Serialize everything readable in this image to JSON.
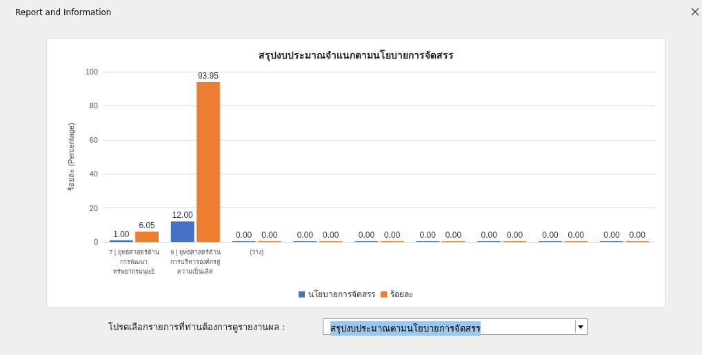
{
  "chart_data": {
    "type": "bar",
    "title": "สรุปงบประมาณจำแนกตามนโยบายการจัดสรร",
    "ylabel": "ร้อยละ (Percentage)",
    "categories": [
      "7 | ยุทธศาสตร์ด้าน\nการพัฒนา\nทรัพยากรมนุษย์",
      "9 | ยุทธศาสตร์ด้าน\nการบริหารองค์กรสู่\nความเป็นเลิศ",
      "(ว่าง)",
      null,
      null,
      null,
      null,
      null,
      null
    ],
    "series": [
      {
        "name": "นโยบายการจัดสรร",
        "color": "#4472c4",
        "values": [
          1,
          12,
          0,
          0,
          0,
          0,
          0,
          0,
          0
        ],
        "value_labels": [
          "1.00",
          "12.00",
          "0.00",
          "0.00",
          "0.00",
          "0.00",
          "0.00",
          "0.00",
          "0.00"
        ]
      },
      {
        "name": "ร้อยละ",
        "color": "#ed7d31",
        "values": [
          6.05,
          93.95,
          0,
          0,
          0,
          0,
          0,
          0,
          0
        ],
        "value_labels": [
          "6.05",
          "93.95",
          "0.00",
          "0.00",
          "0.00",
          "0.00",
          "0.00",
          "0.00",
          "0.00"
        ]
      }
    ],
    "ylim": [
      0,
      100
    ],
    "yticks": [
      0,
      20,
      40,
      60,
      80,
      100
    ],
    "grid": "y",
    "legend": "bottom",
    "annotations": [
      "Report and Information",
      "โปรดเลือกรายการที่ท่านต้องการดูรายงานผล :",
      "สรุปงบประมาณตามนโยบายการจัดสรร"
    ]
  }
}
